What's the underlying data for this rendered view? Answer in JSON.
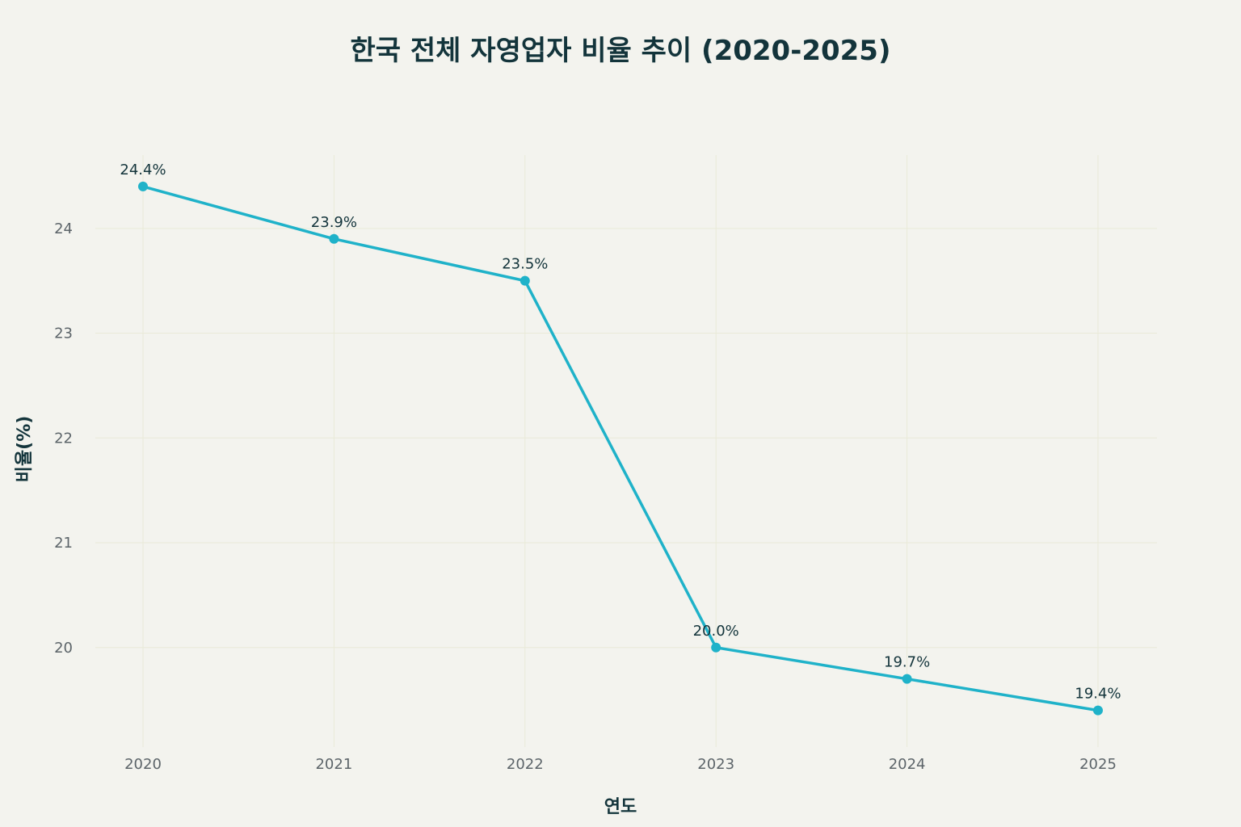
{
  "chart_data": {
    "type": "line",
    "title": "한국 전체 자영업자 비율 추이 (2020-2025)",
    "xlabel": "연도",
    "ylabel": "비율(%)",
    "categories": [
      "2020",
      "2021",
      "2022",
      "2023",
      "2024",
      "2025"
    ],
    "series": [
      {
        "values": [
          24.4,
          23.9,
          23.5,
          20.0,
          19.7,
          19.4
        ],
        "labels": [
          "24.4%",
          "23.9%",
          "23.5%",
          "20.0%",
          "19.7%",
          "19.4%"
        ],
        "color": "#1fb2c9"
      }
    ],
    "yticks": [
      20,
      21,
      22,
      23,
      24
    ],
    "ylim": [
      19.05,
      24.7
    ],
    "grid": true,
    "legend": "none"
  },
  "colors": {
    "background": "#f3f3ee",
    "grid": "#e9ead8",
    "text": "#13343b",
    "tick": "#5c6469"
  }
}
